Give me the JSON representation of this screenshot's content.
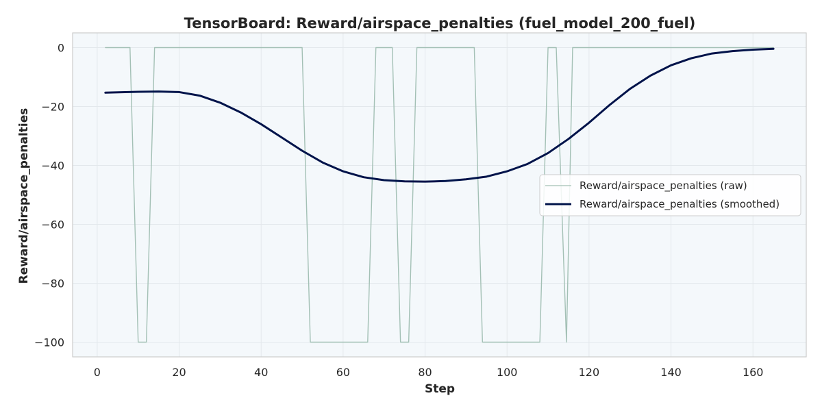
{
  "chart_data": {
    "type": "line",
    "title": "TensorBoard: Reward/airspace_penalties (fuel_model_200_fuel)",
    "xlabel": "Step",
    "ylabel": "Reward/airspace_penalties",
    "xlim": [
      -6,
      173
    ],
    "ylim": [
      -105,
      5
    ],
    "xticks": [
      0,
      20,
      40,
      60,
      80,
      100,
      120,
      140,
      160
    ],
    "yticks": [
      0,
      -20,
      -40,
      -60,
      -80,
      -100
    ],
    "grid": true,
    "legend_position": "center-right",
    "colors": {
      "plot_background": "#f4f8fb",
      "grid": "#e3e8ec",
      "axes_frame": "#cccccc",
      "raw": "#a3c0b5",
      "smoothed": "#00134a"
    },
    "series": [
      {
        "name": "Reward/airspace_penalties (raw)",
        "style": "thin",
        "x": [
          2,
          8,
          10,
          12,
          14,
          50,
          52,
          66,
          68,
          72,
          74,
          76,
          78,
          92,
          94,
          108,
          110,
          112,
          114.5,
          116,
          165
        ],
        "y": [
          0,
          0,
          -100,
          -100,
          0,
          0,
          -100,
          -100,
          0,
          0,
          -100,
          -100,
          0,
          0,
          -100,
          -100,
          0,
          0,
          -100,
          0,
          0
        ]
      },
      {
        "name": "Reward/airspace_penalties (smoothed)",
        "style": "thick",
        "x": [
          2,
          10,
          15,
          20,
          25,
          30,
          35,
          40,
          45,
          50,
          55,
          60,
          65,
          70,
          75,
          80,
          85,
          90,
          95,
          100,
          105,
          110,
          115,
          120,
          125,
          130,
          135,
          140,
          145,
          150,
          155,
          160,
          165
        ],
        "y": [
          -15.3,
          -15.0,
          -14.9,
          -15.1,
          -16.3,
          -18.7,
          -22.0,
          -26.0,
          -30.5,
          -35.0,
          -39.0,
          -42.0,
          -44.0,
          -45.0,
          -45.4,
          -45.5,
          -45.3,
          -44.7,
          -43.8,
          -42.0,
          -39.5,
          -35.8,
          -31.0,
          -25.5,
          -19.5,
          -14.0,
          -9.5,
          -6.0,
          -3.6,
          -2.0,
          -1.2,
          -0.7,
          -0.4
        ]
      }
    ]
  }
}
